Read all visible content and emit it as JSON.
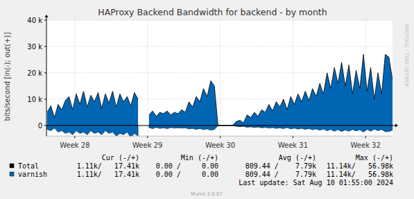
{
  "chart_data": {
    "type": "area",
    "title": "HAProxy Backend Bandwidth for backend - by month",
    "y_label": "bits/second [in(-); out(+)]",
    "x": [
      27.62,
      27.67,
      27.72,
      27.77,
      27.82,
      27.87,
      27.92,
      27.97,
      28.02,
      28.07,
      28.12,
      28.17,
      28.22,
      28.27,
      28.32,
      28.37,
      28.42,
      28.47,
      28.52,
      28.57,
      28.62,
      28.67,
      28.72,
      28.77,
      28.82,
      28.87,
      28.92,
      28.97,
      29.02,
      29.07,
      29.12,
      29.17,
      29.22,
      29.27,
      29.32,
      29.37,
      29.42,
      29.47,
      29.52,
      29.57,
      29.62,
      29.67,
      29.72,
      29.77,
      29.82,
      29.87,
      29.92,
      29.97,
      30.02,
      30.07,
      30.12,
      30.17,
      30.22,
      30.27,
      30.32,
      30.37,
      30.42,
      30.47,
      30.52,
      30.57,
      30.62,
      30.67,
      30.72,
      30.77,
      30.82,
      30.87,
      30.92,
      30.97,
      31.02,
      31.07,
      31.12,
      31.17,
      31.22,
      31.27,
      31.32,
      31.37,
      31.42,
      31.47,
      31.52,
      31.57,
      31.62,
      31.67,
      31.72,
      31.77,
      31.82,
      31.87,
      31.92,
      31.97,
      32.02,
      32.07,
      32.12,
      32.17,
      32.22,
      32.27,
      32.32,
      32.37
    ],
    "xlim": [
      27.61,
      32.37
    ],
    "xticks": [
      {
        "value": 28,
        "label": "Week 28"
      },
      {
        "value": 29,
        "label": "Week 29"
      },
      {
        "value": 30,
        "label": "Week 30"
      },
      {
        "value": 31,
        "label": "Week 31"
      },
      {
        "value": 32,
        "label": "Week 32"
      }
    ],
    "ylim": [
      -4000,
      40000
    ],
    "yticks": [
      0,
      {
        "value": 10000,
        "label": "10 k"
      },
      {
        "value": 20000,
        "label": "20 k"
      },
      {
        "value": 30000,
        "label": "30 k"
      },
      {
        "value": 40000,
        "label": "40 k"
      }
    ],
    "grid": true,
    "legend_columns": [
      "Cur (-/+)",
      "Min (-/+)",
      "Avg (-/+)",
      "Max (-/+)"
    ],
    "series": [
      {
        "name": "Total",
        "color": "#000000",
        "type": "line",
        "values": [
          5000,
          7500,
          3000,
          8000,
          6000,
          9500,
          11000,
          6000,
          12000,
          8000,
          13000,
          7000,
          11500,
          9000,
          12500,
          6500,
          12000,
          8500,
          13000,
          7000,
          12000,
          9000,
          11000,
          7500,
          12500,
          10000,
          null,
          null,
          4000,
          5500,
          3500,
          5000,
          4500,
          5500,
          4000,
          5000,
          4500,
          6000,
          5000,
          9000,
          7000,
          11000,
          9000,
          14000,
          11000,
          17000,
          15000,
          0,
          0,
          0,
          0,
          0,
          1500,
          2000,
          1000,
          4000,
          3000,
          5000,
          3500,
          6000,
          5000,
          8000,
          5500,
          9000,
          7000,
          10000,
          6000,
          11000,
          8000,
          12000,
          9000,
          13000,
          9500,
          14000,
          11000,
          16000,
          12000,
          20000,
          14000,
          22000,
          16000,
          24000,
          15000,
          23000,
          12000,
          21000,
          14000,
          27000,
          13000,
          22000,
          10000,
          20000,
          12000,
          27000,
          26000,
          17400
        ],
        "stats": [
          "1.11k/   17.41k",
          "0.00 /     0.00",
          "809.44 /    7.79k",
          "11.14k/   56.98k"
        ]
      },
      {
        "name": "varnish",
        "color": "#0066b3",
        "type": "area",
        "values": [
          5000,
          7500,
          3000,
          8000,
          6000,
          9500,
          11000,
          6000,
          12000,
          8000,
          13000,
          7000,
          11500,
          9000,
          12500,
          6500,
          12000,
          8500,
          13000,
          7000,
          12000,
          9000,
          11000,
          7500,
          12500,
          10000,
          null,
          null,
          4000,
          5500,
          3500,
          5000,
          4500,
          5500,
          4000,
          5000,
          4500,
          6000,
          5000,
          9000,
          7000,
          11000,
          9000,
          14000,
          11000,
          17000,
          15000,
          0,
          0,
          0,
          0,
          0,
          1500,
          2000,
          1000,
          4000,
          3000,
          5000,
          3500,
          6000,
          5000,
          8000,
          5500,
          9000,
          7000,
          10000,
          6000,
          11000,
          8000,
          12000,
          9000,
          13000,
          9500,
          14000,
          11000,
          16000,
          12000,
          20000,
          14000,
          22000,
          16000,
          24000,
          15000,
          23000,
          12000,
          21000,
          14000,
          27000,
          13000,
          22000,
          10000,
          20000,
          12000,
          27000,
          26000,
          17400
        ],
        "in_values": [
          -1500,
          -2000,
          -1000,
          -2500,
          -2000,
          -3000,
          -2500,
          -3500,
          -2000,
          -3000,
          -2500,
          -3500,
          -2000,
          -3000,
          -2500,
          -3500,
          -2000,
          -3000,
          -2500,
          -4000,
          -3000,
          -3500,
          -2500,
          -4500,
          -3000,
          -4000,
          null,
          null,
          -800,
          -1200,
          -700,
          -1100,
          -900,
          -1200,
          -800,
          -1000,
          -900,
          -1000,
          -900,
          -1300,
          -1100,
          -1500,
          -1200,
          -1600,
          -1300,
          -1800,
          -1500,
          0,
          0,
          0,
          0,
          0,
          -300,
          -500,
          -300,
          -700,
          -500,
          -800,
          -600,
          -900,
          -700,
          -1000,
          -800,
          -1100,
          -900,
          -1200,
          -800,
          -1300,
          -1000,
          -1400,
          -1100,
          -1500,
          -1200,
          -1600,
          -1300,
          -1800,
          -1400,
          -2000,
          -1500,
          -2200,
          -1600,
          -2300,
          -1700,
          -2200,
          -1500,
          -2100,
          -1600,
          -2500,
          -1500,
          -2200,
          -1400,
          -2000,
          -1500,
          -2400,
          -2300,
          -1800
        ],
        "stats": [
          "1.11k/   17.41k",
          "0.00 /     0.00",
          "809.44 /    7.79k",
          "11.14k/   56.98k"
        ]
      }
    ],
    "annotations": [
      "Last update: Sat Aug 10 01:55:00 2024",
      "Munin 2.0.67",
      "RRDTOOL / TOBI OETIKER"
    ]
  }
}
